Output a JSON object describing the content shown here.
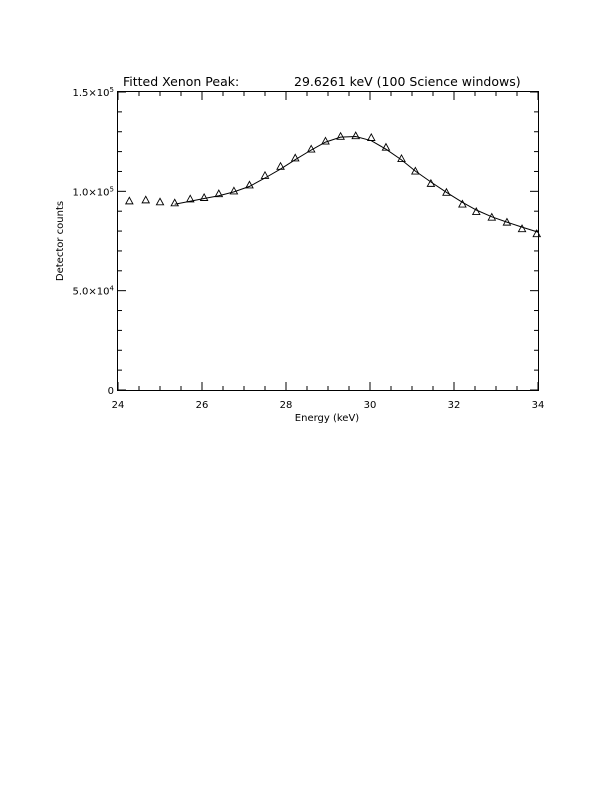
{
  "chart_data": {
    "type": "scatter",
    "title_left": "Fitted Xenon Peak:",
    "title_right": "29.6261 keV (100 Science windows)",
    "xlabel": "Energy (keV)",
    "ylabel": "Detector counts",
    "xlim": [
      24,
      34
    ],
    "ylim": [
      0,
      150000
    ],
    "x_ticks": [
      {
        "value": 24,
        "label": "24"
      },
      {
        "value": 26,
        "label": "26"
      },
      {
        "value": 28,
        "label": "28"
      },
      {
        "value": 30,
        "label": "30"
      },
      {
        "value": 32,
        "label": "32"
      },
      {
        "value": 34,
        "label": "34"
      }
    ],
    "y_ticks": [
      {
        "value": 0,
        "mantissa": "0",
        "exp": ""
      },
      {
        "value": 50000,
        "mantissa": "5.0×10",
        "exp": "4"
      },
      {
        "value": 100000,
        "mantissa": "1.0×10",
        "exp": "5"
      },
      {
        "value": 150000,
        "mantissa": "1.5×10",
        "exp": "5"
      }
    ],
    "series": [
      {
        "marker": "triangle",
        "x": [
          24.27,
          24.66,
          25.0,
          25.35,
          25.72,
          26.05,
          26.4,
          26.76,
          27.13,
          27.5,
          27.87,
          28.22,
          28.6,
          28.94,
          29.3,
          29.66,
          30.03,
          30.38,
          30.75,
          31.08,
          31.45,
          31.82,
          32.2,
          32.53,
          32.9,
          33.26,
          33.62,
          33.97
        ],
        "y": [
          95000,
          95500,
          94500,
          94000,
          96000,
          96700,
          98600,
          100000,
          103000,
          107800,
          112400,
          116600,
          121100,
          125100,
          127500,
          127800,
          126900,
          122000,
          116300,
          110000,
          103800,
          99300,
          93400,
          89600,
          86800,
          84300,
          81000,
          78500
        ]
      },
      {
        "style": "line",
        "x": [
          25.35,
          25.72,
          26.05,
          26.4,
          26.76,
          27.13,
          27.5,
          27.87,
          28.22,
          28.6,
          28.94,
          29.3,
          29.66,
          30.03,
          30.38,
          30.75,
          31.08,
          31.45,
          31.82,
          32.2,
          32.53,
          32.9,
          33.26,
          33.62,
          34.0
        ],
        "y": [
          93500,
          95000,
          96400,
          97800,
          99700,
          102500,
          106700,
          111200,
          115900,
          120800,
          124800,
          127300,
          127600,
          125500,
          121200,
          115800,
          110200,
          104700,
          99500,
          94500,
          90600,
          87200,
          84500,
          82000,
          79500
        ]
      }
    ],
    "grid": false
  }
}
